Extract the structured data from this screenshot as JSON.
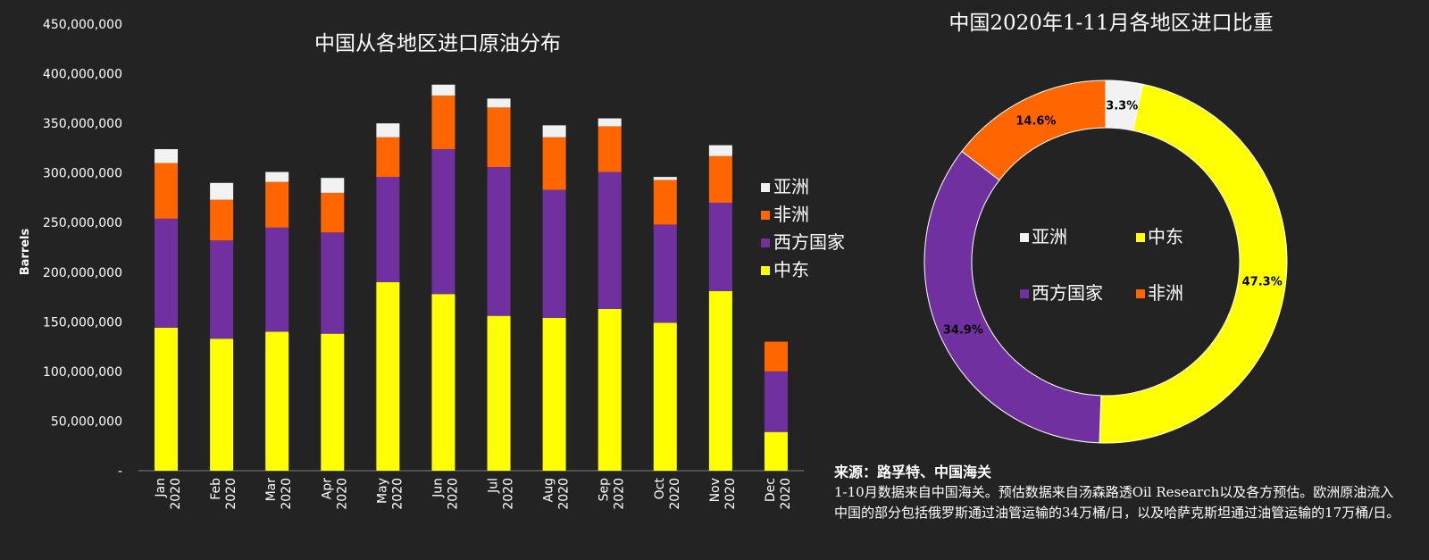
{
  "chart_data": [
    {
      "type": "bar",
      "stacked": true,
      "title": "中国从各地区进口原油分布",
      "ylabel": "Barrels",
      "ylim": [
        0,
        450000000
      ],
      "yticks": [
        "-",
        "50,000,000",
        "100,000,000",
        "150,000,000",
        "200,000,000",
        "250,000,000",
        "300,000,000",
        "350,000,000",
        "400,000,000",
        "450,000,000"
      ],
      "categories": [
        [
          "Jan",
          "2020"
        ],
        [
          "Feb",
          "2020"
        ],
        [
          "Mar",
          "2020"
        ],
        [
          "Apr",
          "2020"
        ],
        [
          "May",
          "2020"
        ],
        [
          "Jun",
          "2020"
        ],
        [
          "Jul",
          "2020"
        ],
        [
          "Aug",
          "2020"
        ],
        [
          "Sep",
          "2020"
        ],
        [
          "Oct",
          "2020"
        ],
        [
          "Nov",
          "2020"
        ],
        [
          "Dec",
          "2020"
        ]
      ],
      "series": [
        {
          "name": "中东",
          "color": "#ffff00",
          "values": [
            144000000,
            133000000,
            140000000,
            138000000,
            190000000,
            178000000,
            156000000,
            154000000,
            163000000,
            149000000,
            181000000,
            39000000
          ]
        },
        {
          "name": "西方国家",
          "color": "#7030a0",
          "values": [
            110000000,
            99000000,
            105000000,
            102000000,
            106000000,
            146000000,
            150000000,
            129000000,
            138000000,
            99000000,
            89000000,
            61000000
          ]
        },
        {
          "name": "非洲",
          "color": "#ff6600",
          "values": [
            56000000,
            41000000,
            46000000,
            40000000,
            40000000,
            54000000,
            60000000,
            53000000,
            46000000,
            45000000,
            47000000,
            30000000
          ]
        },
        {
          "name": "亚洲",
          "color": "#f2f2f2",
          "values": [
            14000000,
            17000000,
            10000000,
            15000000,
            14000000,
            11000000,
            9000000,
            12000000,
            8000000,
            3000000,
            11000000,
            0
          ]
        }
      ],
      "legend": {
        "placement": "right",
        "order": [
          "亚洲",
          "非洲",
          "西方国家",
          "中东"
        ]
      },
      "grid": false
    },
    {
      "type": "pie",
      "donut": true,
      "title": "中国2020年1-11月各地区进口比重",
      "slices": [
        {
          "name": "亚洲",
          "value": 3.3,
          "label": "3.3%",
          "color": "#f2f2f2"
        },
        {
          "name": "中东",
          "value": 47.3,
          "label": "47.3%",
          "color": "#ffff00"
        },
        {
          "name": "西方国家",
          "value": 34.9,
          "label": "34.9%",
          "color": "#7030a0"
        },
        {
          "name": "非洲",
          "value": 14.6,
          "label": "14.6%",
          "color": "#ff6600"
        }
      ],
      "legend": {
        "placement": "center",
        "items": [
          "亚洲",
          "中东",
          "西方国家",
          "非洲"
        ]
      }
    }
  ],
  "footnote": {
    "title": "来源：路孚特、中国海关",
    "text": "1-10月数据来自中国海关。预估数据来自汤森路透Oil Research以及各方预估。欧洲原油流入中国的部分包括俄罗斯通过油管运输的34万桶/日，以及哈萨克斯坦通过油管运输的17万桶/日。"
  }
}
